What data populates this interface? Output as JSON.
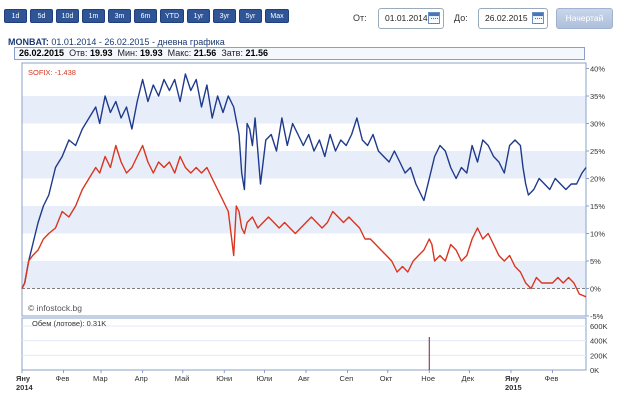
{
  "period_buttons": [
    "1d",
    "5d",
    "10d",
    "1m",
    "3m",
    "6m",
    "YTD",
    "1yr",
    "3yr",
    "5yr",
    "Max"
  ],
  "date_from_label": "От:",
  "date_from": "01.01.2014",
  "date_to_label": "До:",
  "date_to": "26.02.2015",
  "start_button": "Начертай",
  "header": {
    "name": "MONBAT:",
    "range": "01.01.2014 - 26.02.2015",
    "type": "- дневна графика"
  },
  "stats": {
    "date": "26.02.2015",
    "open_label": "Отв:",
    "open": "19.93",
    "low_label": "Мин:",
    "low": "19.93",
    "high_label": "Макс:",
    "high": "21.56",
    "close_label": "Затв:",
    "close": "21.56"
  },
  "sofix_label": "SOFIX: -1.438",
  "watermark": "© infostock.bg",
  "volume_label": "Обем (лотове): 0.31K",
  "colors": {
    "monbat": "#1f3a8c",
    "sofix": "#d9351f",
    "grid_band": "#e8eef9",
    "volume": "#7a1f2b"
  },
  "chart_data": {
    "type": "line",
    "ylabel": "",
    "y_unit": "%",
    "ylim": [
      -5,
      41
    ],
    "yticks": [
      "40%",
      "35%",
      "30%",
      "25%",
      "20%",
      "15%",
      "10%",
      "5%",
      "0%",
      "-5%"
    ],
    "x_ticks": [
      {
        "label": "Яну",
        "year": "2014",
        "day": 0
      },
      {
        "label": "Фев",
        "day": 31
      },
      {
        "label": "Мар",
        "day": 59
      },
      {
        "label": "Апр",
        "day": 90
      },
      {
        "label": "Май",
        "day": 120
      },
      {
        "label": "Юни",
        "day": 151
      },
      {
        "label": "Юли",
        "day": 181
      },
      {
        "label": "Авг",
        "day": 212
      },
      {
        "label": "Сеп",
        "day": 243
      },
      {
        "label": "Окт",
        "day": 273
      },
      {
        "label": "Ное",
        "day": 304
      },
      {
        "label": "Дек",
        "day": 334
      },
      {
        "label": "Яну",
        "year": "2015",
        "day": 365
      },
      {
        "label": "Фев",
        "day": 396
      }
    ],
    "xlim_days": [
      0,
      421
    ],
    "series": [
      {
        "name": "MONBAT",
        "points": [
          [
            0,
            0
          ],
          [
            2,
            1
          ],
          [
            5,
            5
          ],
          [
            8,
            8
          ],
          [
            12,
            12
          ],
          [
            16,
            15
          ],
          [
            20,
            17
          ],
          [
            25,
            22
          ],
          [
            30,
            24
          ],
          [
            35,
            27
          ],
          [
            40,
            26
          ],
          [
            45,
            29
          ],
          [
            50,
            31
          ],
          [
            55,
            33
          ],
          [
            58,
            30
          ],
          [
            62,
            35
          ],
          [
            66,
            32
          ],
          [
            70,
            34
          ],
          [
            74,
            31
          ],
          [
            78,
            33
          ],
          [
            82,
            29
          ],
          [
            86,
            34
          ],
          [
            90,
            38
          ],
          [
            94,
            34
          ],
          [
            98,
            37
          ],
          [
            102,
            35
          ],
          [
            106,
            38
          ],
          [
            110,
            36
          ],
          [
            114,
            38
          ],
          [
            118,
            34
          ],
          [
            122,
            39
          ],
          [
            126,
            36
          ],
          [
            130,
            38
          ],
          [
            134,
            33
          ],
          [
            138,
            37
          ],
          [
            142,
            31
          ],
          [
            146,
            35
          ],
          [
            150,
            32
          ],
          [
            154,
            35
          ],
          [
            158,
            33
          ],
          [
            162,
            28
          ],
          [
            164,
            21
          ],
          [
            166,
            18
          ],
          [
            168,
            30
          ],
          [
            170,
            29
          ],
          [
            172,
            26
          ],
          [
            174,
            31
          ],
          [
            176,
            25
          ],
          [
            178,
            19
          ],
          [
            182,
            27
          ],
          [
            186,
            28
          ],
          [
            190,
            25
          ],
          [
            194,
            31
          ],
          [
            198,
            26
          ],
          [
            202,
            30
          ],
          [
            206,
            28
          ],
          [
            210,
            26
          ],
          [
            214,
            28
          ],
          [
            218,
            25
          ],
          [
            222,
            27
          ],
          [
            226,
            24
          ],
          [
            230,
            28
          ],
          [
            234,
            25
          ],
          [
            238,
            27
          ],
          [
            242,
            26
          ],
          [
            246,
            28
          ],
          [
            250,
            31
          ],
          [
            254,
            27
          ],
          [
            258,
            26
          ],
          [
            262,
            28
          ],
          [
            266,
            25
          ],
          [
            270,
            24
          ],
          [
            274,
            23
          ],
          [
            278,
            25
          ],
          [
            282,
            23
          ],
          [
            286,
            21
          ],
          [
            290,
            22
          ],
          [
            294,
            19
          ],
          [
            298,
            17
          ],
          [
            300,
            16
          ],
          [
            304,
            20
          ],
          [
            308,
            24
          ],
          [
            312,
            26
          ],
          [
            316,
            25
          ],
          [
            320,
            22
          ],
          [
            324,
            20
          ],
          [
            328,
            22
          ],
          [
            332,
            21
          ],
          [
            336,
            26
          ],
          [
            340,
            23
          ],
          [
            344,
            27
          ],
          [
            348,
            26
          ],
          [
            352,
            24
          ],
          [
            356,
            23
          ],
          [
            360,
            21
          ],
          [
            364,
            26
          ],
          [
            368,
            27
          ],
          [
            372,
            26
          ],
          [
            374,
            22
          ],
          [
            376,
            19
          ],
          [
            378,
            17
          ],
          [
            382,
            18
          ],
          [
            386,
            20
          ],
          [
            390,
            19
          ],
          [
            394,
            18
          ],
          [
            398,
            20
          ],
          [
            402,
            19
          ],
          [
            406,
            18
          ],
          [
            410,
            19
          ],
          [
            414,
            19
          ],
          [
            418,
            21
          ],
          [
            421,
            22
          ]
        ]
      },
      {
        "name": "SOFIX",
        "points": [
          [
            0,
            0
          ],
          [
            2,
            1
          ],
          [
            5,
            5
          ],
          [
            8,
            6
          ],
          [
            12,
            7
          ],
          [
            16,
            9
          ],
          [
            20,
            10
          ],
          [
            25,
            11
          ],
          [
            30,
            14
          ],
          [
            35,
            13
          ],
          [
            40,
            15
          ],
          [
            45,
            18
          ],
          [
            50,
            20
          ],
          [
            55,
            22
          ],
          [
            58,
            21
          ],
          [
            62,
            24
          ],
          [
            66,
            22
          ],
          [
            70,
            26
          ],
          [
            74,
            23
          ],
          [
            78,
            21
          ],
          [
            82,
            22
          ],
          [
            86,
            24
          ],
          [
            90,
            26
          ],
          [
            94,
            23
          ],
          [
            98,
            21
          ],
          [
            102,
            23
          ],
          [
            106,
            22
          ],
          [
            110,
            23
          ],
          [
            114,
            21
          ],
          [
            118,
            24
          ],
          [
            122,
            22
          ],
          [
            126,
            21
          ],
          [
            130,
            22
          ],
          [
            134,
            21
          ],
          [
            138,
            22
          ],
          [
            142,
            20
          ],
          [
            146,
            18
          ],
          [
            150,
            16
          ],
          [
            154,
            14
          ],
          [
            156,
            10
          ],
          [
            158,
            6
          ],
          [
            160,
            15
          ],
          [
            162,
            14
          ],
          [
            164,
            11
          ],
          [
            166,
            10
          ],
          [
            168,
            12
          ],
          [
            172,
            13
          ],
          [
            176,
            11
          ],
          [
            180,
            12
          ],
          [
            184,
            13
          ],
          [
            188,
            12
          ],
          [
            192,
            11
          ],
          [
            196,
            12
          ],
          [
            200,
            11
          ],
          [
            204,
            10
          ],
          [
            208,
            11
          ],
          [
            212,
            12
          ],
          [
            216,
            13
          ],
          [
            220,
            12
          ],
          [
            224,
            11
          ],
          [
            228,
            12
          ],
          [
            232,
            14
          ],
          [
            236,
            13
          ],
          [
            240,
            12
          ],
          [
            244,
            13
          ],
          [
            248,
            12
          ],
          [
            252,
            11
          ],
          [
            256,
            9
          ],
          [
            260,
            9
          ],
          [
            264,
            8
          ],
          [
            268,
            7
          ],
          [
            272,
            6
          ],
          [
            276,
            5
          ],
          [
            280,
            3
          ],
          [
            284,
            4
          ],
          [
            288,
            3
          ],
          [
            292,
            5
          ],
          [
            296,
            6
          ],
          [
            300,
            7
          ],
          [
            304,
            9
          ],
          [
            306,
            8
          ],
          [
            308,
            5
          ],
          [
            312,
            6
          ],
          [
            316,
            5
          ],
          [
            320,
            8
          ],
          [
            324,
            7
          ],
          [
            328,
            5
          ],
          [
            332,
            6
          ],
          [
            336,
            9
          ],
          [
            340,
            11
          ],
          [
            344,
            9
          ],
          [
            348,
            10
          ],
          [
            352,
            8
          ],
          [
            356,
            6
          ],
          [
            360,
            5
          ],
          [
            364,
            6
          ],
          [
            368,
            4
          ],
          [
            372,
            3
          ],
          [
            376,
            1
          ],
          [
            380,
            0
          ],
          [
            384,
            2
          ],
          [
            388,
            1
          ],
          [
            392,
            1
          ],
          [
            396,
            1
          ],
          [
            400,
            2
          ],
          [
            404,
            1
          ],
          [
            408,
            2
          ],
          [
            412,
            1
          ],
          [
            416,
            -1
          ],
          [
            421,
            -1.5
          ]
        ]
      }
    ],
    "volume": {
      "label": "Обем (лотове): 0.31K",
      "yticks": [
        "600K",
        "400K",
        "200K",
        "0K"
      ],
      "ylim": [
        0,
        600
      ],
      "bars": [
        [
          304,
          450
        ]
      ]
    }
  }
}
